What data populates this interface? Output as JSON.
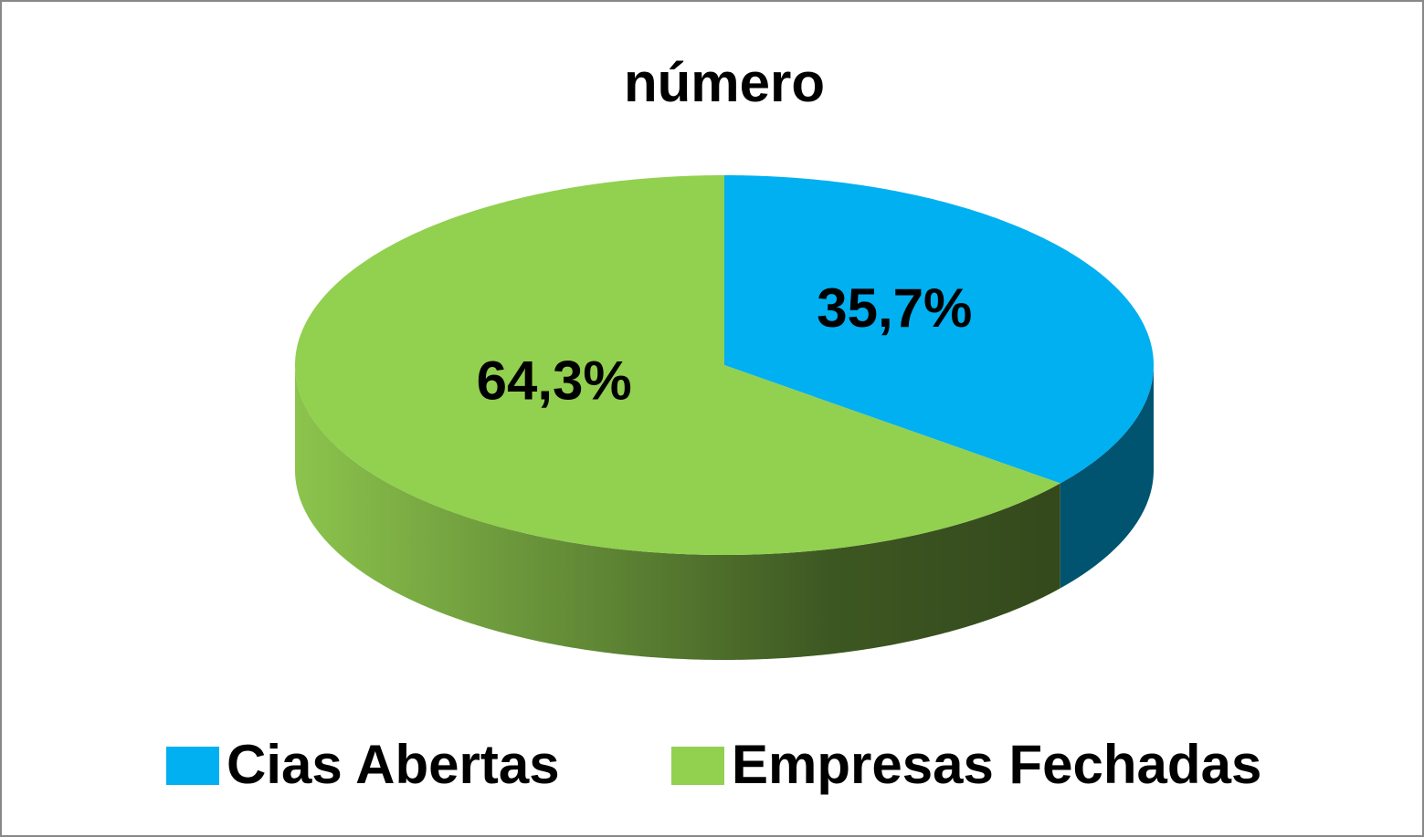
{
  "chart_data": {
    "type": "pie",
    "title": "número",
    "categories": [
      "Cias Abertas",
      "Empresas Fechadas"
    ],
    "values": [
      35.7,
      64.3
    ],
    "value_labels": [
      "35,7%",
      "64,3%"
    ],
    "colors": [
      "#00b0f0",
      "#92d050"
    ],
    "legend": "bottom"
  }
}
